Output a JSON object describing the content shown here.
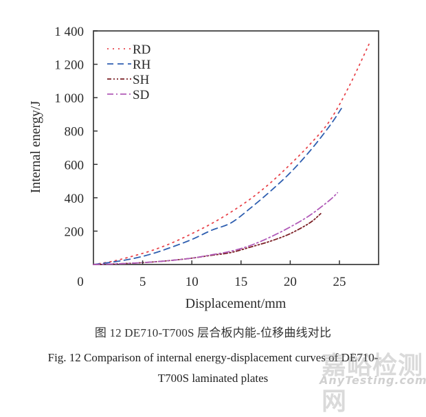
{
  "chart_data": {
    "type": "line",
    "title": "",
    "xlabel": "Displacement/mm",
    "ylabel": "Internal energy/J",
    "xlim": [
      0,
      29
    ],
    "ylim": [
      0,
      1400
    ],
    "x_ticks": [
      0,
      5,
      10,
      15,
      20,
      25
    ],
    "x_tick_labels": [
      "0",
      "5",
      "10",
      "15",
      "20",
      "25"
    ],
    "y_ticks": [
      200,
      400,
      600,
      800,
      1000,
      1200,
      1400
    ],
    "y_tick_labels": [
      "200",
      "400",
      "600",
      "800",
      "1 000",
      "1 200",
      "1 400"
    ],
    "grid": false,
    "legend_position": "top-left",
    "series": [
      {
        "name": "RD",
        "color": "#e8434a",
        "style": "dotted",
        "x": [
          0,
          2,
          4,
          6,
          8,
          10,
          12,
          14,
          16,
          18,
          20,
          22,
          24,
          26,
          28
        ],
        "y": [
          0,
          20,
          50,
          85,
          130,
          185,
          245,
          315,
          395,
          490,
          600,
          720,
          860,
          1070,
          1320
        ]
      },
      {
        "name": "RH",
        "color": "#2f5fb0",
        "style": "dashed",
        "x": [
          0,
          2,
          4,
          6,
          8,
          10,
          12,
          14,
          16,
          18,
          20,
          22,
          24,
          25.2
        ],
        "y": [
          0,
          15,
          35,
          65,
          105,
          150,
          205,
          250,
          340,
          440,
          550,
          680,
          830,
          935
        ]
      },
      {
        "name": "SH",
        "color": "#7a1e24",
        "style": "dash-dot-dot",
        "x": [
          0,
          2,
          4,
          6,
          8,
          10,
          12,
          14,
          16,
          18,
          20,
          22,
          23.1
        ],
        "y": [
          0,
          3,
          8,
          15,
          25,
          38,
          55,
          72,
          105,
          140,
          185,
          250,
          305
        ]
      },
      {
        "name": "SD",
        "color": "#b05ab8",
        "style": "dash-dot",
        "x": [
          0,
          2,
          4,
          6,
          8,
          10,
          12,
          14,
          16,
          18,
          20,
          22,
          24,
          24.8
        ],
        "y": [
          0,
          3,
          8,
          15,
          25,
          38,
          58,
          80,
          115,
          165,
          225,
          295,
          385,
          430
        ]
      }
    ]
  },
  "captions": {
    "cn": "图 12   DE710-T700S 层合板内能-位移曲线对比",
    "en_line1": "Fig. 12   Comparison of internal energy-displacement curves of DE710-",
    "en_line2": "T700S laminated plates"
  },
  "watermark": {
    "cn": "嘉峪检测网",
    "en": "AnyTesting.com"
  }
}
